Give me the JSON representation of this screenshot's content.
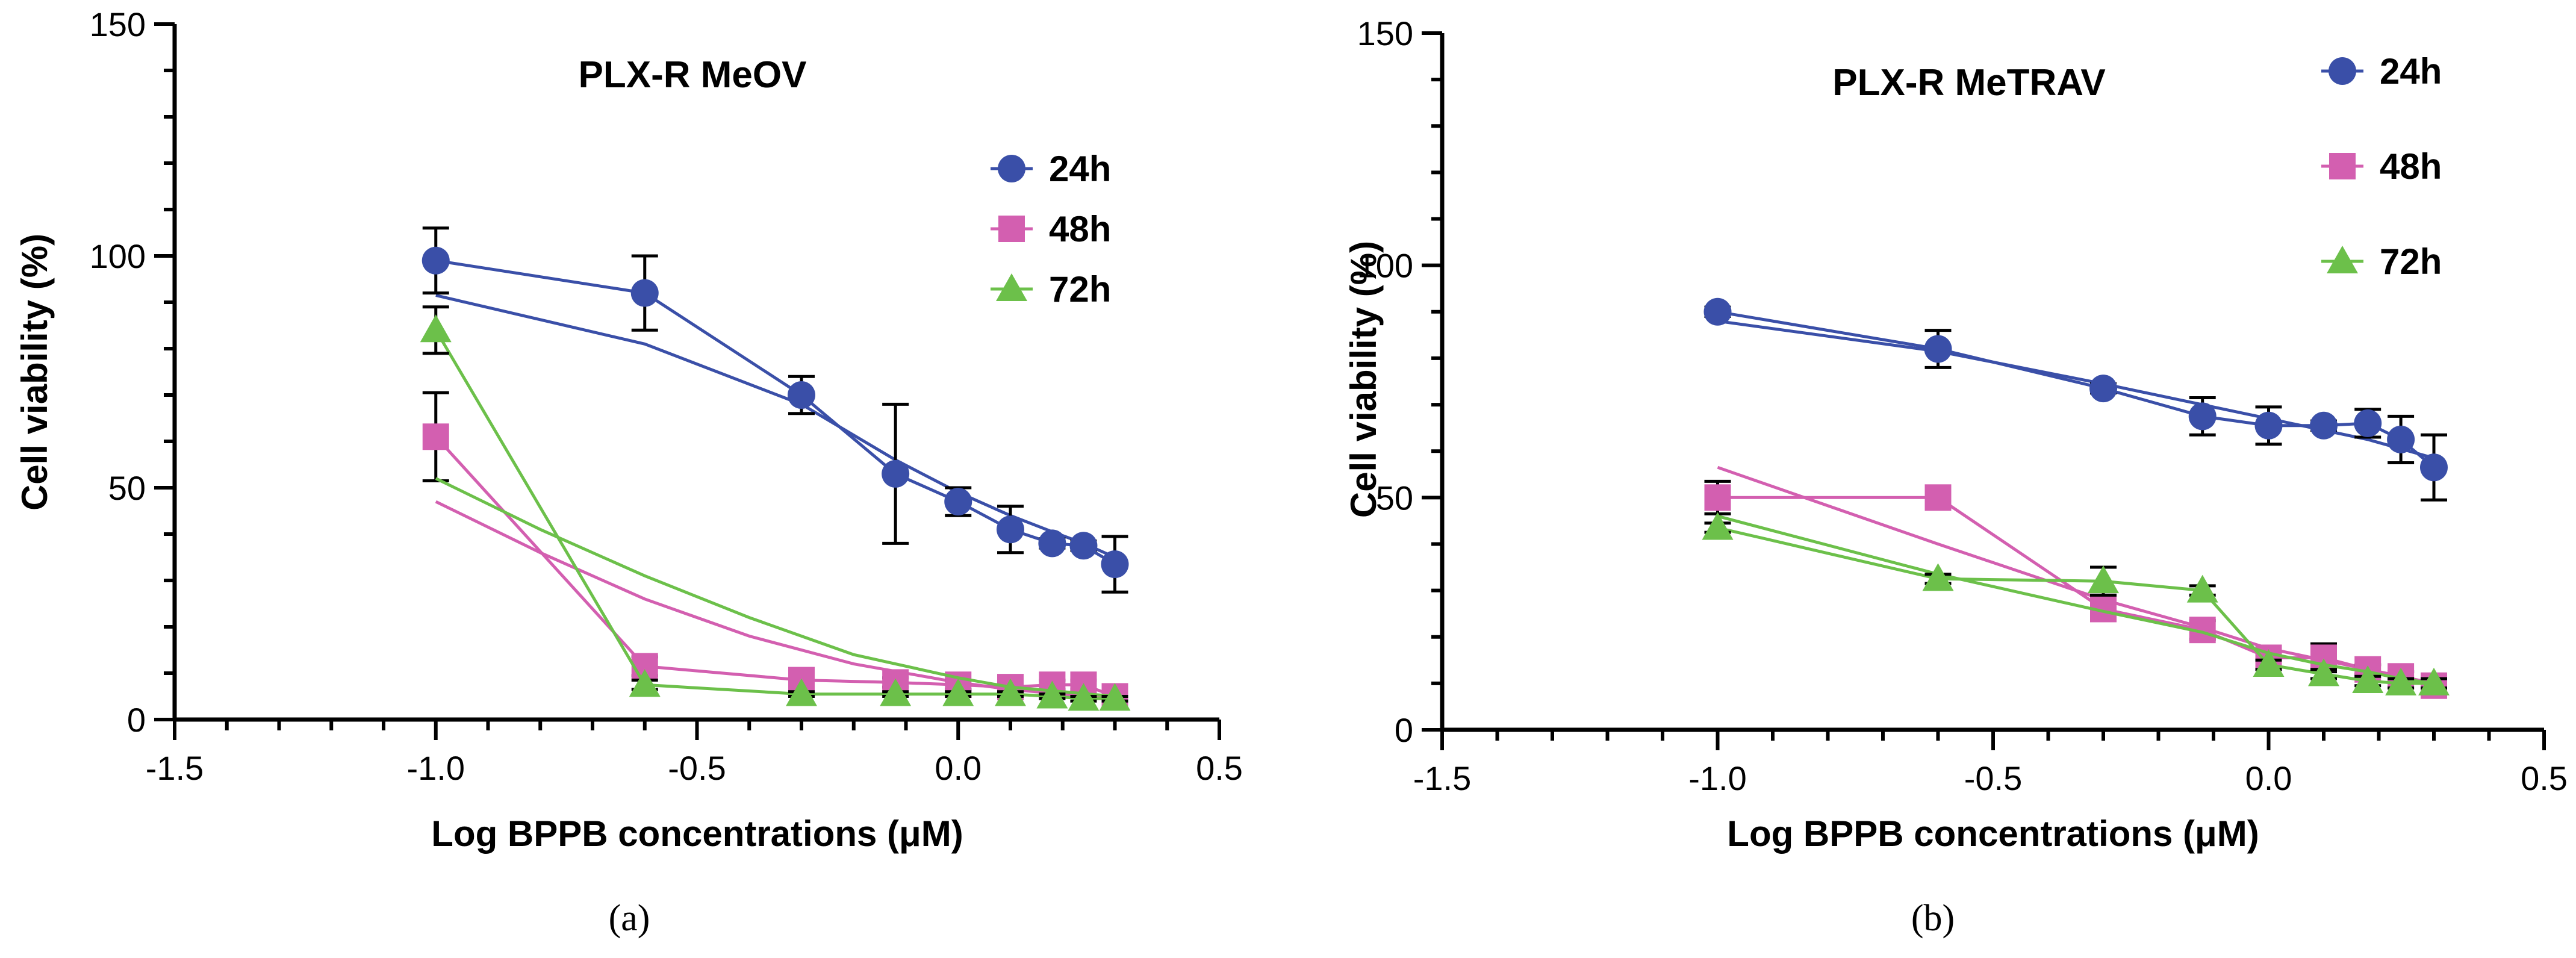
{
  "chart_data": [
    {
      "type": "line",
      "panel_label": "(a)",
      "title": "PLX-R MeOV",
      "xlabel": "Log BPPB concentrations (μM)",
      "ylabel": "Cell viability (%)",
      "xlim": [
        -1.5,
        0.5
      ],
      "ylim": [
        0,
        150
      ],
      "xticks": [
        "-1.5",
        "-1.0",
        "-0.5",
        "0.0",
        "0.5"
      ],
      "xtick_values": [
        -1.5,
        -1.0,
        -0.5,
        0.0,
        0.5
      ],
      "yticks": [
        "0",
        "50",
        "100",
        "150"
      ],
      "ytick_values": [
        0,
        50,
        100,
        150
      ],
      "legend_position": "top-right",
      "series": [
        {
          "name": "24h",
          "color": "#3a4fa8",
          "marker": "circle",
          "x": [
            -1.0,
            -0.6,
            -0.3,
            -0.12,
            0.0,
            0.1,
            0.18,
            0.24,
            0.3
          ],
          "y": [
            99,
            92,
            70,
            53,
            47,
            41,
            38,
            37.5,
            33.5
          ],
          "err": [
            7,
            8,
            4,
            15,
            3,
            5,
            1,
            1,
            6
          ],
          "fit_x": [
            -1.0,
            -0.6,
            -0.3,
            -0.12,
            0.0,
            0.1,
            0.18,
            0.24,
            0.3
          ],
          "fit_y": [
            91.5,
            81,
            68,
            56,
            49,
            44,
            40.5,
            38,
            35
          ]
        },
        {
          "name": "48h",
          "color": "#d35fb0",
          "marker": "square",
          "x": [
            -1.0,
            -0.6,
            -0.3,
            -0.12,
            0.0,
            0.1,
            0.18,
            0.24,
            0.3
          ],
          "y": [
            61,
            11.5,
            8.5,
            8,
            7.5,
            7,
            7.5,
            7.5,
            5
          ],
          "err": [
            9.5,
            2,
            1,
            1,
            1,
            1,
            1,
            1,
            1
          ],
          "fit_x": [
            -1.0,
            -0.8,
            -0.6,
            -0.4,
            -0.2,
            0.0,
            0.1,
            0.2,
            0.3
          ],
          "fit_y": [
            47,
            36,
            26,
            18,
            12,
            8,
            6.5,
            5.5,
            4.5
          ]
        },
        {
          "name": "72h",
          "color": "#6cc04a",
          "marker": "triangle",
          "x": [
            -1.0,
            -0.6,
            -0.3,
            -0.12,
            0.0,
            0.1,
            0.18,
            0.24,
            0.3
          ],
          "y": [
            84,
            7.5,
            5.5,
            5.5,
            5.5,
            5.5,
            5,
            4.5,
            4.5
          ],
          "err": [
            5,
            1,
            0.5,
            0.5,
            0.5,
            0.5,
            0.5,
            0.5,
            0.5
          ],
          "fit_x": [
            -1.0,
            -0.8,
            -0.6,
            -0.4,
            -0.2,
            0.0,
            0.1,
            0.2,
            0.3
          ],
          "fit_y": [
            52,
            41,
            31,
            22,
            14,
            9,
            7,
            6,
            5
          ]
        }
      ]
    },
    {
      "type": "line",
      "panel_label": "(b)",
      "title": "PLX-R MeTRAV",
      "xlabel": "Log BPPB concentrations (μM)",
      "ylabel": "Cell viability (%)",
      "xlim": [
        -1.5,
        0.5
      ],
      "ylim": [
        0,
        150
      ],
      "xticks": [
        "-1.5",
        "-1.0",
        "-0.5",
        "0.0",
        "0.5"
      ],
      "xtick_values": [
        -1.5,
        -1.0,
        -0.5,
        0.0,
        0.5
      ],
      "yticks": [
        "0",
        "50",
        "100",
        "150"
      ],
      "ytick_values": [
        0,
        50,
        100,
        150
      ],
      "legend_position": "top-right",
      "series": [
        {
          "name": "24h",
          "color": "#3a4fa8",
          "marker": "circle",
          "x": [
            -1.0,
            -0.6,
            -0.3,
            -0.12,
            0.0,
            0.1,
            0.18,
            0.24,
            0.3
          ],
          "y": [
            90,
            82,
            73.5,
            67.5,
            65.5,
            65.5,
            66,
            62.5,
            56.5
          ],
          "err": [
            1,
            4,
            1,
            4,
            4,
            1,
            3,
            5,
            7
          ],
          "fit_x": [
            -1.0,
            -0.6,
            -0.3,
            -0.12,
            0.0,
            0.1,
            0.18,
            0.24,
            0.3
          ],
          "fit_y": [
            88,
            81.5,
            74.5,
            70,
            67,
            64.5,
            62.5,
            60.5,
            58.5
          ]
        },
        {
          "name": "48h",
          "color": "#d35fb0",
          "marker": "square",
          "x": [
            -1.0,
            -0.6,
            -0.3,
            -0.12,
            0.0,
            0.1,
            0.18,
            0.24,
            0.3
          ],
          "y": [
            50,
            50,
            26,
            21.5,
            15.5,
            15.5,
            13,
            11.5,
            9.5
          ],
          "err": [
            3.5,
            1,
            1,
            2,
            1.5,
            3,
            1,
            1,
            1
          ],
          "fit_x": [
            -1.0,
            -0.6,
            -0.3,
            -0.12,
            0.0,
            0.1,
            0.18,
            0.24,
            0.3
          ],
          "fit_y": [
            56.5,
            40,
            28,
            22,
            17.5,
            15,
            13,
            11.5,
            10
          ]
        },
        {
          "name": "72h",
          "color": "#6cc04a",
          "marker": "triangle",
          "x": [
            -1.0,
            -0.6,
            -0.3,
            -0.12,
            0.0,
            0.1,
            0.18,
            0.24,
            0.3
          ],
          "y": [
            43.5,
            32.5,
            32,
            30,
            14,
            12,
            10.5,
            10,
            10
          ],
          "err": [
            1,
            1,
            3,
            1,
            1,
            1,
            1,
            1,
            1
          ],
          "fit_x": [
            -1.0,
            -0.6,
            -0.3,
            -0.12,
            0.0,
            0.1,
            0.18,
            0.24,
            0.3
          ],
          "fit_y": [
            46,
            33.5,
            25.5,
            21,
            16.5,
            14,
            12.5,
            11,
            10
          ]
        }
      ]
    }
  ]
}
